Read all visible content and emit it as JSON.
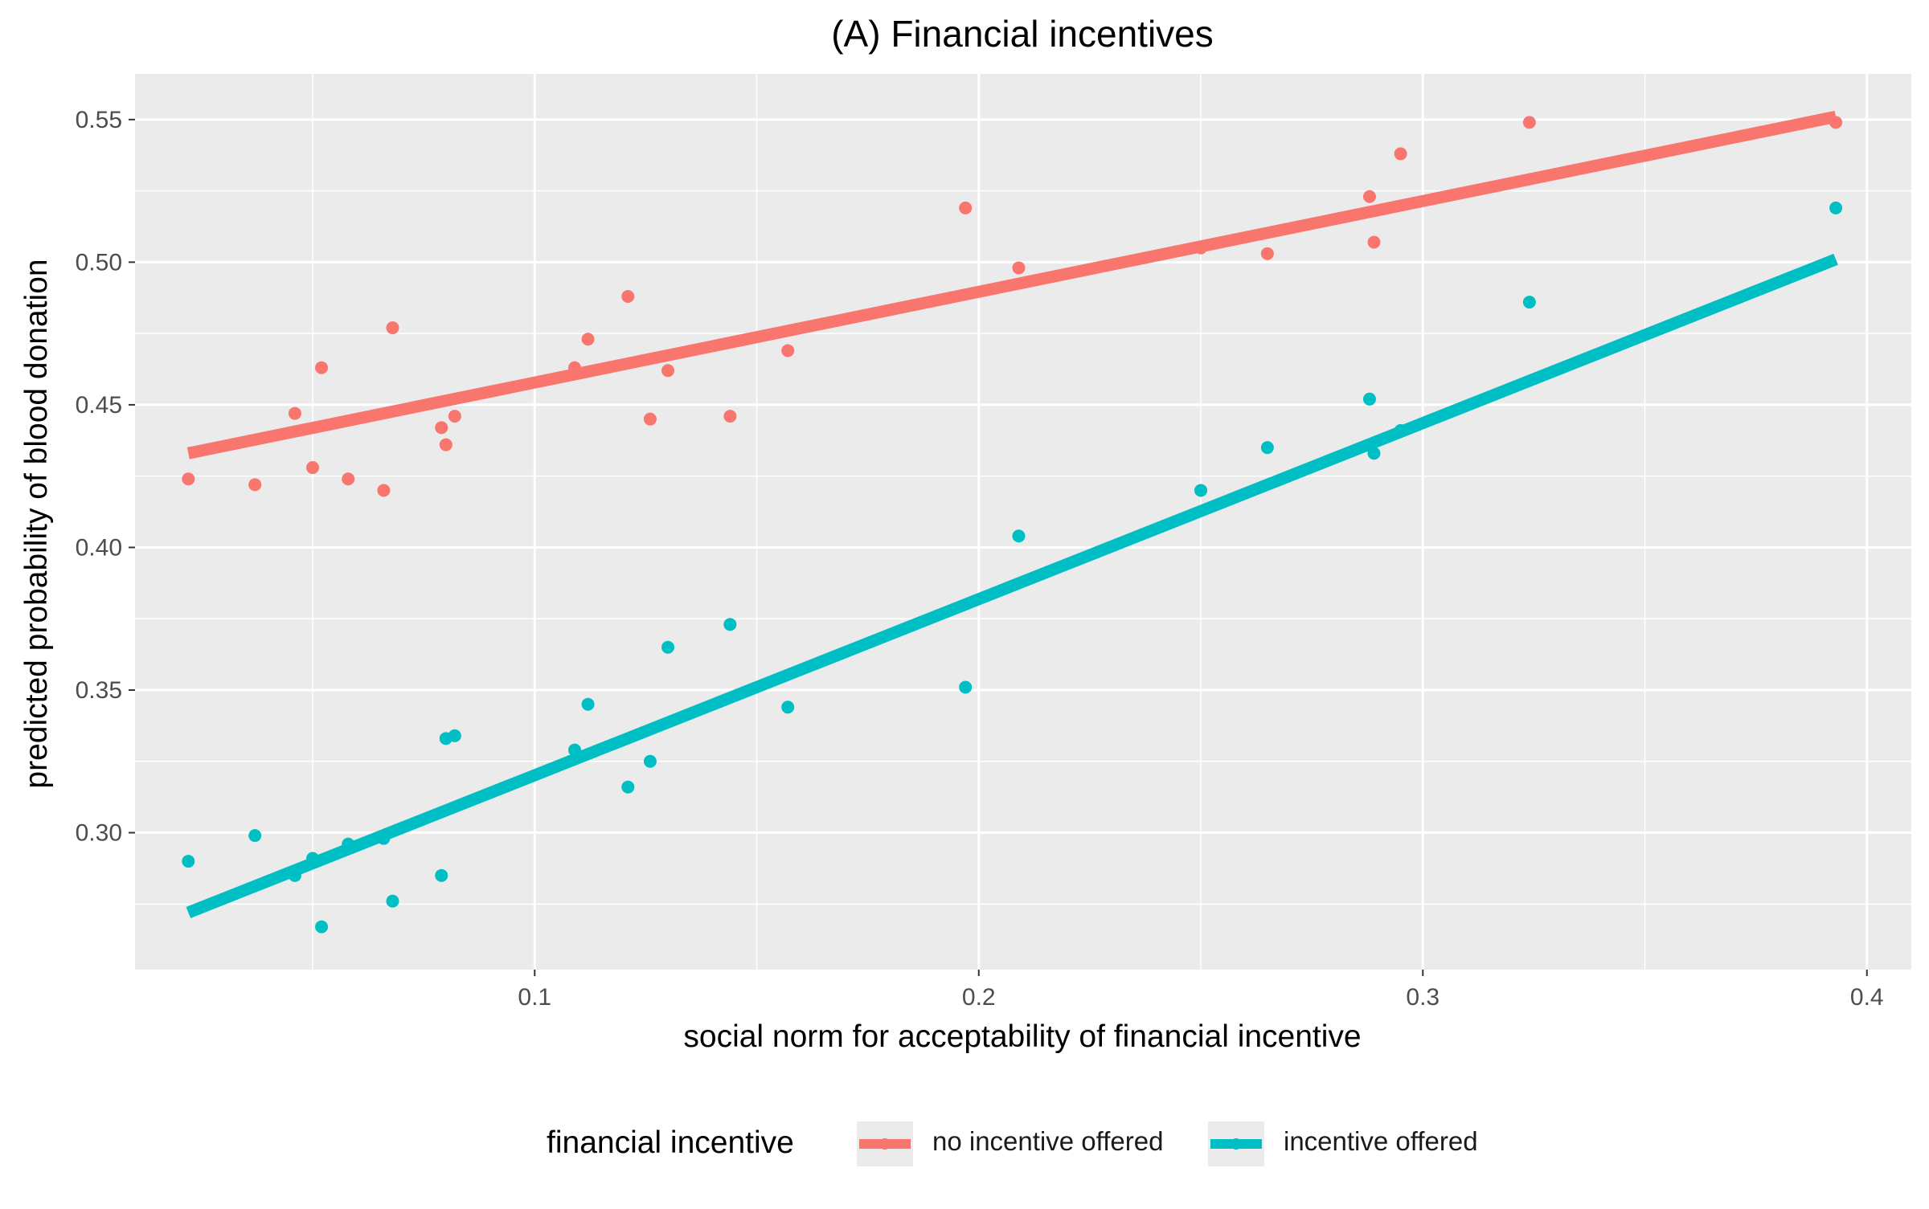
{
  "chart_data": {
    "type": "scatter",
    "title": "(A) Financial incentives",
    "xlabel": "social norm for acceptability of financial incentive",
    "ylabel": "predicted probability of blood donation",
    "xlim": [
      0.01,
      0.41
    ],
    "ylim": [
      0.252,
      0.566
    ],
    "x_ticks": [
      {
        "value": 0.1,
        "label": "0.1"
      },
      {
        "value": 0.2,
        "label": "0.2"
      },
      {
        "value": 0.3,
        "label": "0.3"
      },
      {
        "value": 0.4,
        "label": "0.4"
      }
    ],
    "x_minor_ticks": [
      0.05,
      0.15,
      0.25,
      0.35
    ],
    "y_ticks": [
      {
        "value": 0.3,
        "label": "0.30"
      },
      {
        "value": 0.35,
        "label": "0.35"
      },
      {
        "value": 0.4,
        "label": "0.40"
      },
      {
        "value": 0.45,
        "label": "0.45"
      },
      {
        "value": 0.5,
        "label": "0.50"
      },
      {
        "value": 0.55,
        "label": "0.55"
      }
    ],
    "y_minor_ticks": [
      0.275,
      0.325,
      0.375,
      0.425,
      0.475,
      0.525
    ],
    "grid": true,
    "legend": {
      "title": "financial incentive",
      "position": "bottom"
    },
    "series": [
      {
        "name": "no incentive offered",
        "color": "#F8766D",
        "points": [
          {
            "x": 0.022,
            "y": 0.424
          },
          {
            "x": 0.037,
            "y": 0.422
          },
          {
            "x": 0.046,
            "y": 0.447
          },
          {
            "x": 0.05,
            "y": 0.428
          },
          {
            "x": 0.052,
            "y": 0.463
          },
          {
            "x": 0.058,
            "y": 0.424
          },
          {
            "x": 0.066,
            "y": 0.42
          },
          {
            "x": 0.068,
            "y": 0.477
          },
          {
            "x": 0.079,
            "y": 0.442
          },
          {
            "x": 0.08,
            "y": 0.436
          },
          {
            "x": 0.082,
            "y": 0.446
          },
          {
            "x": 0.109,
            "y": 0.463
          },
          {
            "x": 0.112,
            "y": 0.473
          },
          {
            "x": 0.121,
            "y": 0.488
          },
          {
            "x": 0.126,
            "y": 0.445
          },
          {
            "x": 0.13,
            "y": 0.462
          },
          {
            "x": 0.144,
            "y": 0.446
          },
          {
            "x": 0.157,
            "y": 0.469
          },
          {
            "x": 0.197,
            "y": 0.519
          },
          {
            "x": 0.209,
            "y": 0.498
          },
          {
            "x": 0.25,
            "y": 0.505
          },
          {
            "x": 0.265,
            "y": 0.503
          },
          {
            "x": 0.288,
            "y": 0.523
          },
          {
            "x": 0.289,
            "y": 0.507
          },
          {
            "x": 0.295,
            "y": 0.538
          },
          {
            "x": 0.324,
            "y": 0.549
          },
          {
            "x": 0.393,
            "y": 0.549
          }
        ],
        "fit": [
          {
            "x": 0.022,
            "y": 0.433
          },
          {
            "x": 0.393,
            "y": 0.551
          }
        ]
      },
      {
        "name": "incentive offered",
        "color": "#00BFC4",
        "points": [
          {
            "x": 0.022,
            "y": 0.29
          },
          {
            "x": 0.037,
            "y": 0.299
          },
          {
            "x": 0.046,
            "y": 0.285
          },
          {
            "x": 0.05,
            "y": 0.291
          },
          {
            "x": 0.052,
            "y": 0.267
          },
          {
            "x": 0.058,
            "y": 0.296
          },
          {
            "x": 0.066,
            "y": 0.298
          },
          {
            "x": 0.068,
            "y": 0.276
          },
          {
            "x": 0.079,
            "y": 0.285
          },
          {
            "x": 0.08,
            "y": 0.333
          },
          {
            "x": 0.082,
            "y": 0.334
          },
          {
            "x": 0.109,
            "y": 0.329
          },
          {
            "x": 0.112,
            "y": 0.345
          },
          {
            "x": 0.121,
            "y": 0.316
          },
          {
            "x": 0.126,
            "y": 0.325
          },
          {
            "x": 0.13,
            "y": 0.365
          },
          {
            "x": 0.144,
            "y": 0.373
          },
          {
            "x": 0.157,
            "y": 0.344
          },
          {
            "x": 0.197,
            "y": 0.351
          },
          {
            "x": 0.209,
            "y": 0.404
          },
          {
            "x": 0.25,
            "y": 0.42
          },
          {
            "x": 0.265,
            "y": 0.435
          },
          {
            "x": 0.288,
            "y": 0.452
          },
          {
            "x": 0.289,
            "y": 0.433
          },
          {
            "x": 0.295,
            "y": 0.441
          },
          {
            "x": 0.324,
            "y": 0.486
          },
          {
            "x": 0.393,
            "y": 0.519
          }
        ],
        "fit": [
          {
            "x": 0.022,
            "y": 0.272
          },
          {
            "x": 0.393,
            "y": 0.501
          }
        ]
      }
    ]
  }
}
